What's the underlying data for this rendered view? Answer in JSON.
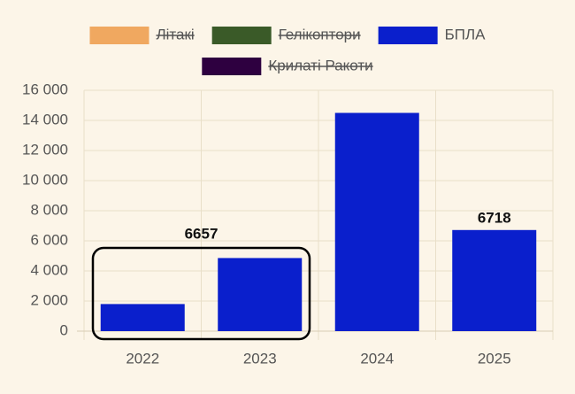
{
  "chart_data": {
    "type": "bar",
    "categories": [
      "2022",
      "2023",
      "2024",
      "2025"
    ],
    "series": [
      {
        "name": "Літакі",
        "color": "#f0a860",
        "hidden": true
      },
      {
        "name": "Гелікоптори",
        "color": "#3a5a28",
        "hidden": true
      },
      {
        "name": "БПЛА",
        "color": "#0a1fcc",
        "values": [
          1800,
          4857,
          14500,
          6718
        ],
        "value_labels": [
          null,
          null,
          null,
          "6718"
        ]
      },
      {
        "name": "Крилаті Ракоти",
        "color": "#2e0040",
        "hidden": true
      }
    ],
    "annotation": {
      "text": "6657",
      "categories": [
        "2022",
        "2023"
      ]
    },
    "ylim": [
      0,
      16000
    ],
    "yticks": [
      0,
      {
        "value": 2000,
        "label": "2 000"
      },
      {
        "value": 4000,
        "label": "4 000"
      },
      {
        "value": 6000,
        "label": "6 000"
      },
      {
        "value": 8000,
        "label": "8 000"
      },
      {
        "value": 10000,
        "label": "10 000"
      },
      {
        "value": 12000,
        "label": "12 000"
      },
      {
        "value": 14000,
        "label": "14 000"
      },
      {
        "value": 16000,
        "label": "16 000"
      }
    ],
    "grid": true
  }
}
